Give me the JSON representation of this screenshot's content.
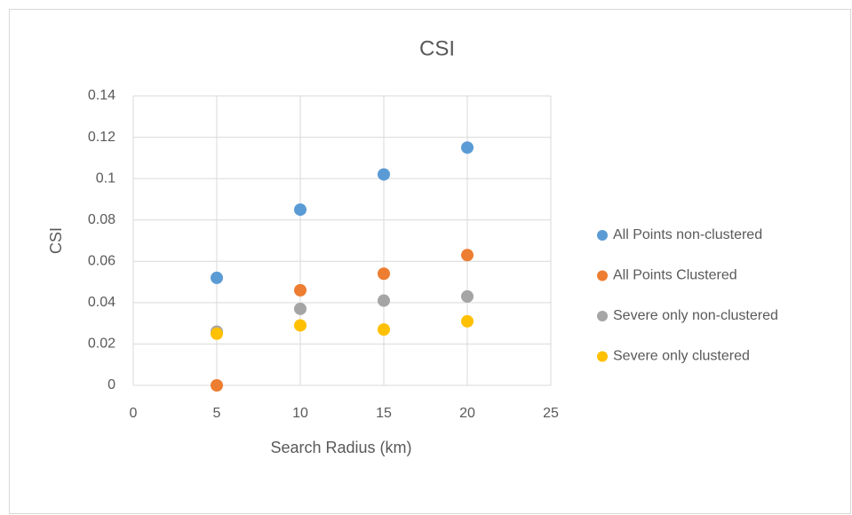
{
  "chart_data": {
    "type": "scatter",
    "title": "CSI",
    "x_label": "Search Radius (km)",
    "y_label": "CSI",
    "x": [
      5,
      10,
      15,
      20
    ],
    "series": [
      {
        "name": "All Points non-clustered",
        "color": "#5b9bd5",
        "values": [
          0.052,
          0.085,
          0.102,
          0.115
        ]
      },
      {
        "name": "All Points Clustered",
        "color": "#ed7d31",
        "values": [
          0,
          0.046,
          0.054,
          0.063
        ]
      },
      {
        "name": "Severe only non-clustered",
        "color": "#a5a5a5",
        "values": [
          0.026,
          0.037,
          0.041,
          0.043
        ]
      },
      {
        "name": "Severe only clustered",
        "color": "#ffc000",
        "values": [
          0.025,
          0.029,
          0.027,
          0.031
        ]
      }
    ],
    "xlim": [
      0,
      25
    ],
    "xticks": [
      0,
      5,
      10,
      15,
      20,
      25
    ],
    "ylim": [
      0,
      0.14
    ],
    "yticks": [
      0,
      0.02,
      0.04,
      0.06,
      0.08,
      0.1,
      0.12,
      0.14
    ],
    "grid": true,
    "legend": "right"
  }
}
